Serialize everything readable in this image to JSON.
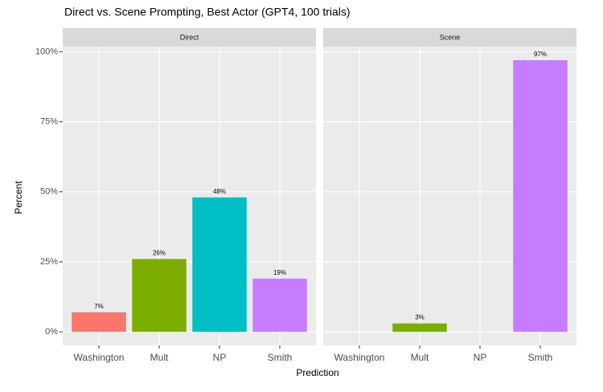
{
  "chart_data": {
    "type": "bar",
    "title": "Direct vs. Scene Prompting, Best Actor (GPT4, 100 trials)",
    "x_label": "Prediction",
    "y_label": "Percent",
    "categories": [
      "Washington",
      "Mult",
      "NP",
      "Smith"
    ],
    "colors": [
      "#F8766D",
      "#7CAE00",
      "#00BFC4",
      "#C77CFF"
    ],
    "ylim": [
      -4.85,
      101.85
    ],
    "yticks": [
      {
        "value": 0,
        "label": "0%"
      },
      {
        "value": 25,
        "label": "25%"
      },
      {
        "value": 50,
        "label": "50%"
      },
      {
        "value": 75,
        "label": "75%"
      },
      {
        "value": 100,
        "label": "100%"
      }
    ],
    "grid": true,
    "panels": [
      {
        "name": "Direct",
        "values": [
          7,
          26,
          48,
          19
        ],
        "value_labels": [
          "7%",
          "26%",
          "48%",
          "19%"
        ]
      },
      {
        "name": "Scene",
        "values": [
          null,
          3,
          null,
          97
        ],
        "value_labels": [
          null,
          "3%",
          null,
          "97%"
        ]
      }
    ]
  }
}
